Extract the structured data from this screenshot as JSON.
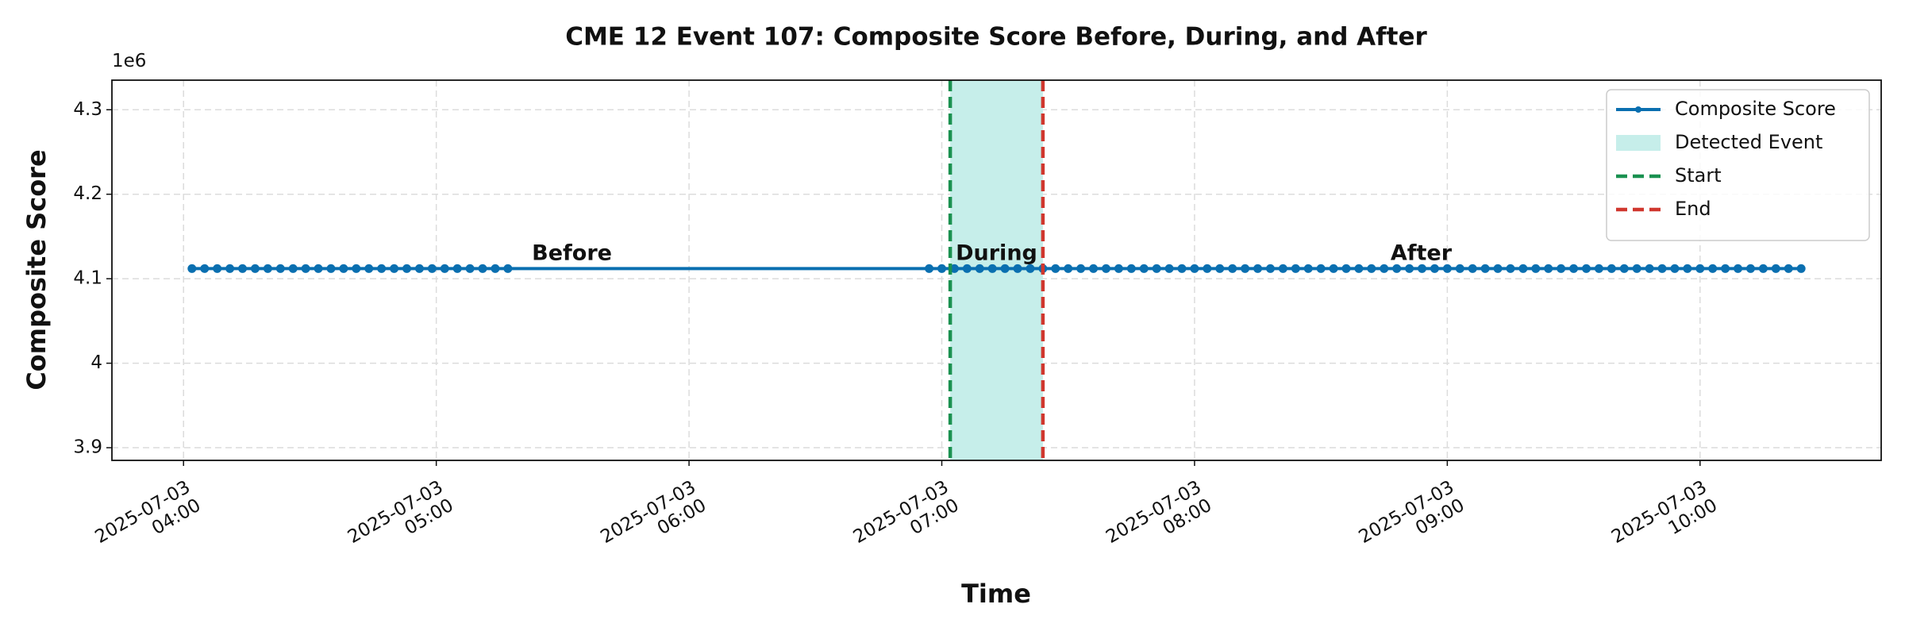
{
  "chart_data": {
    "type": "line",
    "title": "CME 12 Event 107: Composite Score Before, During, and After",
    "x_label": "Time",
    "y_label": "Composite Score",
    "y_offset_label": "1e6",
    "x": [
      "2025-07-03 04:02",
      "2025-07-03 04:05",
      "2025-07-03 04:08",
      "2025-07-03 04:11",
      "2025-07-03 04:14",
      "2025-07-03 04:17",
      "2025-07-03 04:20",
      "2025-07-03 04:23",
      "2025-07-03 04:26",
      "2025-07-03 04:29",
      "2025-07-03 04:32",
      "2025-07-03 04:35",
      "2025-07-03 04:38",
      "2025-07-03 04:41",
      "2025-07-03 04:44",
      "2025-07-03 04:47",
      "2025-07-03 04:50",
      "2025-07-03 04:53",
      "2025-07-03 04:56",
      "2025-07-03 04:59",
      "2025-07-03 05:02",
      "2025-07-03 05:05",
      "2025-07-03 05:08",
      "2025-07-03 05:11",
      "2025-07-03 05:14",
      "2025-07-03 05:17",
      "2025-07-03 06:57",
      "2025-07-03 07:00",
      "2025-07-03 07:03",
      "2025-07-03 07:06",
      "2025-07-03 07:09",
      "2025-07-03 07:12",
      "2025-07-03 07:15",
      "2025-07-03 07:18",
      "2025-07-03 07:21",
      "2025-07-03 07:24",
      "2025-07-03 07:27",
      "2025-07-03 07:30",
      "2025-07-03 07:33",
      "2025-07-03 07:36",
      "2025-07-03 07:39",
      "2025-07-03 07:42",
      "2025-07-03 07:45",
      "2025-07-03 07:48",
      "2025-07-03 07:51",
      "2025-07-03 07:54",
      "2025-07-03 07:57",
      "2025-07-03 08:00",
      "2025-07-03 08:03",
      "2025-07-03 08:06",
      "2025-07-03 08:09",
      "2025-07-03 08:12",
      "2025-07-03 08:15",
      "2025-07-03 08:18",
      "2025-07-03 08:21",
      "2025-07-03 08:24",
      "2025-07-03 08:27",
      "2025-07-03 08:30",
      "2025-07-03 08:33",
      "2025-07-03 08:36",
      "2025-07-03 08:39",
      "2025-07-03 08:42",
      "2025-07-03 08:45",
      "2025-07-03 08:48",
      "2025-07-03 08:51",
      "2025-07-03 08:54",
      "2025-07-03 08:57",
      "2025-07-03 09:00",
      "2025-07-03 09:03",
      "2025-07-03 09:06",
      "2025-07-03 09:09",
      "2025-07-03 09:12",
      "2025-07-03 09:15",
      "2025-07-03 09:18",
      "2025-07-03 09:21",
      "2025-07-03 09:24",
      "2025-07-03 09:27",
      "2025-07-03 09:30",
      "2025-07-03 09:33",
      "2025-07-03 09:36",
      "2025-07-03 09:39",
      "2025-07-03 09:42",
      "2025-07-03 09:45",
      "2025-07-03 09:48",
      "2025-07-03 09:51",
      "2025-07-03 09:54",
      "2025-07-03 09:57",
      "2025-07-03 10:00",
      "2025-07-03 10:03",
      "2025-07-03 10:06",
      "2025-07-03 10:09",
      "2025-07-03 10:12",
      "2025-07-03 10:15",
      "2025-07-03 10:18",
      "2025-07-03 10:21",
      "2025-07-03 10:24"
    ],
    "series": [
      {
        "name": "Composite Score",
        "color": "#0a6fb0",
        "values": [
          4.112,
          4.112,
          4.112,
          4.112,
          4.112,
          4.112,
          4.112,
          4.112,
          4.112,
          4.112,
          4.112,
          4.112,
          4.112,
          4.112,
          4.112,
          4.112,
          4.112,
          4.112,
          4.112,
          4.112,
          4.112,
          4.112,
          4.112,
          4.112,
          4.112,
          4.112,
          4.112,
          4.112,
          4.112,
          4.112,
          4.112,
          4.112,
          4.112,
          4.112,
          4.112,
          4.112,
          4.112,
          4.112,
          4.112,
          4.112,
          4.112,
          4.112,
          4.112,
          4.112,
          4.112,
          4.112,
          4.112,
          4.112,
          4.112,
          4.112,
          4.112,
          4.112,
          4.112,
          4.112,
          4.112,
          4.112,
          4.112,
          4.112,
          4.112,
          4.112,
          4.112,
          4.112,
          4.112,
          4.112,
          4.112,
          4.112,
          4.112,
          4.112,
          4.112,
          4.112,
          4.112,
          4.112,
          4.112,
          4.112,
          4.112,
          4.112,
          4.112,
          4.112,
          4.112,
          4.112,
          4.112,
          4.112,
          4.112,
          4.112,
          4.112,
          4.112,
          4.112,
          4.112,
          4.112,
          4.112,
          4.112,
          4.112,
          4.112,
          4.112,
          4.112,
          4.112
        ]
      }
    ],
    "spans": [
      {
        "name": "Detected Event",
        "start": "2025-07-03 07:02",
        "end": "2025-07-03 07:24",
        "color": "#c6eeea"
      }
    ],
    "vlines": [
      {
        "name": "Start",
        "x": "2025-07-03 07:02",
        "color": "#1a9150"
      },
      {
        "name": "End",
        "x": "2025-07-03 07:24",
        "color": "#d0372e"
      }
    ],
    "annotations": [
      {
        "text": "Before",
        "color": "#444444"
      },
      {
        "text": "During",
        "color": "#0a72b5"
      },
      {
        "text": "After",
        "color": "#444444"
      }
    ],
    "xlim": [
      "2025-07-03 03:43",
      "2025-07-03 10:43"
    ],
    "xticks": [
      {
        "value": "2025-07-03 04:00",
        "label": "2025-07-03\n04:00"
      },
      {
        "value": "2025-07-03 05:00",
        "label": "2025-07-03\n05:00"
      },
      {
        "value": "2025-07-03 06:00",
        "label": "2025-07-03\n06:00"
      },
      {
        "value": "2025-07-03 07:00",
        "label": "2025-07-03\n07:00"
      },
      {
        "value": "2025-07-03 08:00",
        "label": "2025-07-03\n08:00"
      },
      {
        "value": "2025-07-03 09:00",
        "label": "2025-07-03\n09:00"
      },
      {
        "value": "2025-07-03 10:00",
        "label": "2025-07-03\n10:00"
      }
    ],
    "ylim": [
      3.885,
      4.335
    ],
    "yticks": [
      3.9,
      4.0,
      4.1,
      4.2,
      4.3
    ],
    "grid": true,
    "legend": "upper right"
  }
}
